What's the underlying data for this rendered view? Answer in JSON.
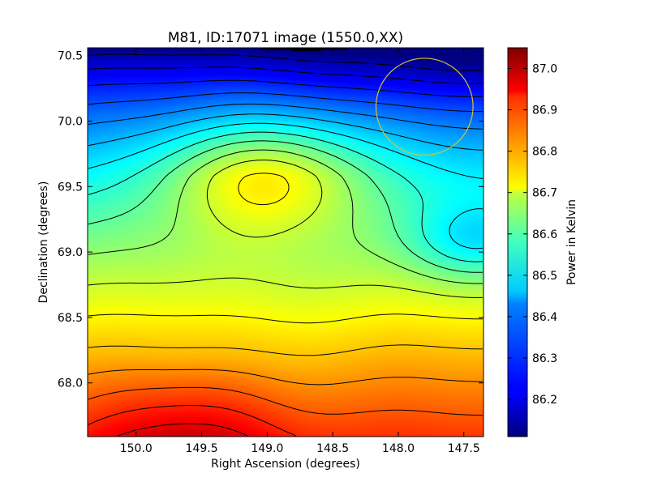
{
  "chart_data": {
    "type": "heatmap",
    "title": "M81, ID:17071 image (1550.0,XX)",
    "xlabel": "Right Ascension (degrees)",
    "ylabel": "Declination (degrees)",
    "xlim": [
      150.37,
      147.35
    ],
    "ylim": [
      67.59,
      70.56
    ],
    "x_ticks": [
      150.0,
      149.5,
      149.0,
      148.5,
      148.0,
      147.5
    ],
    "x_tick_labels": [
      "150.0",
      "149.5",
      "149.0",
      "148.5",
      "148.0",
      "147.5"
    ],
    "y_ticks": [
      68.0,
      68.5,
      69.0,
      69.5,
      70.0,
      70.5
    ],
    "y_tick_labels": [
      "68.0",
      "68.5",
      "69.0",
      "69.5",
      "70.0",
      "70.5"
    ],
    "colormap": "jet",
    "colorbar": {
      "label": "Power in Kelvin",
      "range": [
        86.11,
        87.05
      ],
      "ticks": [
        86.2,
        86.3,
        86.4,
        86.5,
        86.6,
        86.7,
        86.8,
        86.9,
        87.0
      ],
      "tick_labels": [
        "86.2",
        "86.3",
        "86.4",
        "86.5",
        "86.6",
        "86.7",
        "86.8",
        "86.9",
        "87.0"
      ]
    },
    "features": {
      "peak": {
        "ra": 149.0,
        "dec": 69.58,
        "value": 86.76
      },
      "minimum_region": {
        "ra": 147.55,
        "dec": 70.5,
        "value": 86.11
      },
      "bottom_maximum": {
        "ra": 149.6,
        "dec": 67.6,
        "value": 87.05
      }
    },
    "marker_circle": {
      "ra_center": 147.8,
      "dec_center": 70.11,
      "radius_deg": 0.37,
      "color": "#d4c43a"
    },
    "contour_color": "#000000",
    "grid": false
  }
}
